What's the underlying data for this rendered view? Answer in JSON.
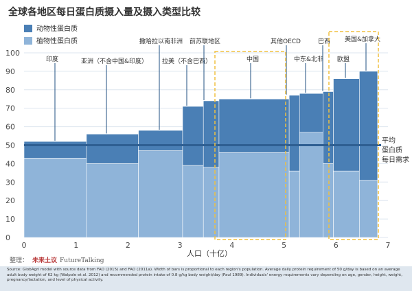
{
  "chart_data": {
    "type": "bar",
    "title": "全球各地区每日蛋白质摄入量及摄入类型比较",
    "xlabel": "人口（十亿）",
    "ylabel": "",
    "xlim": [
      0,
      7
    ],
    "ylim": [
      0,
      100
    ],
    "x_ticks": [
      0,
      1,
      2,
      3,
      4,
      5,
      6,
      7
    ],
    "y_ticks": [
      0,
      10,
      20,
      30,
      40,
      50,
      60,
      70,
      80,
      90,
      100
    ],
    "grid": true,
    "legend_position": "top-left",
    "series": [
      {
        "name": "动物性蛋白质",
        "color": "#4a7fb5"
      },
      {
        "name": "植物性蛋白质",
        "color": "#8fb4d9"
      }
    ],
    "regions": [
      {
        "label": "印度",
        "x_start": 0.0,
        "x_end": 1.2,
        "animal": 9,
        "plant": 43
      },
      {
        "label": "亚洲（不含中国&印度）",
        "x_start": 1.2,
        "x_end": 2.2,
        "animal": 16,
        "plant": 40
      },
      {
        "label": "撒哈拉以南非洲",
        "x_start": 2.2,
        "x_end": 3.05,
        "animal": 11,
        "plant": 47
      },
      {
        "label": "拉美（不含巴西）",
        "x_start": 3.05,
        "x_end": 3.45,
        "animal": 32,
        "plant": 39
      },
      {
        "label": "前苏联地区",
        "x_start": 3.45,
        "x_end": 3.75,
        "animal": 36,
        "plant": 38
      },
      {
        "label": "中国",
        "x_start": 3.75,
        "x_end": 5.1,
        "animal": 29,
        "plant": 46
      },
      {
        "label": "其他OECD",
        "x_start": 5.1,
        "x_end": 5.3,
        "animal": 41,
        "plant": 36
      },
      {
        "label": "中东&北非",
        "x_start": 5.3,
        "x_end": 5.75,
        "animal": 21,
        "plant": 57
      },
      {
        "label": "巴西",
        "x_start": 5.75,
        "x_end": 5.95,
        "animal": 39,
        "plant": 40
      },
      {
        "label": "欧盟",
        "x_start": 5.95,
        "x_end": 6.45,
        "animal": 50,
        "plant": 36
      },
      {
        "label": "美国&加拿大",
        "x_start": 6.45,
        "x_end": 6.8,
        "animal": 59,
        "plant": 31
      }
    ],
    "reference_line": {
      "value": 50,
      "label_lines": [
        "平均",
        "蛋白质",
        "每日需求"
      ]
    },
    "highlight_box_labels": [
      "中国",
      "美国&加拿大"
    ]
  },
  "credit": {
    "label": "整理：",
    "name": "未来土议",
    "name_en": "FutureTalking"
  },
  "source": "Source: GlobAgri model with source data from FAO (2015) and FAO (2011a). Width of bars is proportional to each region's population. Average daily protein requirement of 50 g/day is based on an average adult body weight of 62 kg (Walpole et al. 2012) and recommended protein intake of 0.8 g/kg body weight/day (Paul 1989). Individuals' energy requirements vary depending on age, gender, height, weight, pregnancy/lactation, and level of physical activity.",
  "colors": {
    "animal": "#4a7fb5",
    "plant": "#8fb4d9",
    "reference_line": "#2f5f92",
    "highlight": "#f0c040",
    "gridline": "#dde6ef"
  }
}
